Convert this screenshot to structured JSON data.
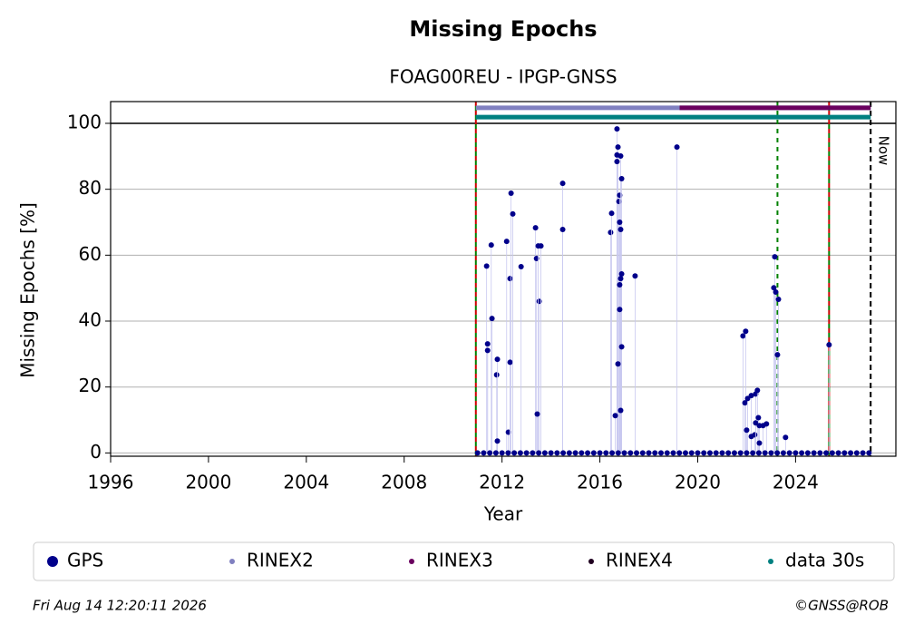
{
  "chart_data": {
    "type": "scatter",
    "title": "Missing Epochs",
    "subtitle": "FOAG00REU - IPGP-GNSS",
    "x_label": "Year",
    "y_label": "Missing Epochs [%]",
    "xlim": [
      1996,
      2028.1
    ],
    "ylim": [
      -1,
      106.6
    ],
    "xticks": [
      1996,
      2000,
      2004,
      2008,
      2012,
      2016,
      2020,
      2024
    ],
    "yticks": [
      0,
      20,
      40,
      60,
      80,
      100
    ],
    "grid": true,
    "hline": 100,
    "series": [
      {
        "name": "GPS",
        "color": "#00008b",
        "marker": "dot",
        "stems": true,
        "x": [
          2011.37,
          2011.41,
          2011.41,
          2011.56,
          2011.59,
          2011.78,
          2011.81,
          2011.81,
          2012.19,
          2012.26,
          2012.33,
          2012.37,
          2012.33,
          2012.44,
          2012.78,
          2013.37,
          2013.41,
          2013.52,
          2013.48,
          2013.59,
          2013.44,
          2014.48,
          2014.48,
          2016.44,
          2016.48,
          2016.7,
          2016.74,
          2016.7,
          2016.7,
          2016.78,
          2016.81,
          2016.85,
          2016.89,
          2016.81,
          2016.85,
          2016.89,
          2016.85,
          2016.81,
          2016.81,
          2016.74,
          2016.89,
          2016.85,
          2016.63,
          2017.44,
          2019.15,
          2021.85,
          2021.96,
          2021.93,
          2022.04,
          2022.19,
          2022.37,
          2022.44,
          2022.0,
          2022.19,
          2022.33,
          2022.37,
          2022.48,
          2022.52,
          2022.52,
          2022.67,
          2022.81,
          2023.15,
          2023.11,
          2023.19,
          2023.3,
          2023.26,
          2023.59,
          2025.37,
          2011,
          2011.25,
          2011.5,
          2011.75,
          2012,
          2012.25,
          2012.5,
          2012.75,
          2013,
          2013.25,
          2013.5,
          2013.75,
          2014,
          2014.25,
          2014.5,
          2014.75,
          2015,
          2015.25,
          2015.5,
          2015.75,
          2016,
          2016.25,
          2016.5,
          2016.75,
          2017,
          2017.25,
          2017.5,
          2017.75,
          2018,
          2018.25,
          2018.5,
          2018.75,
          2019,
          2019.25,
          2019.5,
          2019.75,
          2020,
          2020.25,
          2020.5,
          2020.75,
          2021,
          2021.25,
          2021.5,
          2021.75,
          2022,
          2022.25,
          2022.5,
          2022.75,
          2023,
          2023.25,
          2023.5,
          2023.75,
          2024,
          2024.25,
          2024.5,
          2024.75,
          2025,
          2025.25,
          2025.5,
          2025.75,
          2026,
          2026.25,
          2026.5,
          2026.75,
          2027
        ],
        "values": [
          56.7,
          33.1,
          31.1,
          63.1,
          40.8,
          23.7,
          28.4,
          3.6,
          64.2,
          6.3,
          52.9,
          78.8,
          27.5,
          72.5,
          56.5,
          68.3,
          59.0,
          46.0,
          62.8,
          62.8,
          11.8,
          81.8,
          67.8,
          66.9,
          72.7,
          98.3,
          92.8,
          90.4,
          88.4,
          76.3,
          78.2,
          90.1,
          83.2,
          70.0,
          67.8,
          54.3,
          52.9,
          51.0,
          43.5,
          27.0,
          32.2,
          12.9,
          11.3,
          53.7,
          92.8,
          35.5,
          36.9,
          15.2,
          16.5,
          17.4,
          17.9,
          19.0,
          6.9,
          5.0,
          5.5,
          9.1,
          10.7,
          8.3,
          3.0,
          8.3,
          8.8,
          59.5,
          50.1,
          48.8,
          46.6,
          29.8,
          4.7,
          32.8,
          0,
          0,
          0,
          0,
          0,
          0,
          0,
          0,
          0,
          0,
          0,
          0,
          0,
          0,
          0,
          0,
          0,
          0,
          0,
          0,
          0,
          0,
          0,
          0,
          0,
          0,
          0,
          0,
          0,
          0,
          0,
          0,
          0,
          0,
          0,
          0,
          0,
          0,
          0,
          0,
          0,
          0,
          0,
          0,
          0,
          0,
          0,
          0,
          0,
          0,
          0,
          0,
          0,
          0,
          0,
          0,
          0,
          0,
          0,
          0,
          0,
          0,
          0,
          0,
          0
        ]
      },
      {
        "name": "RINEX2",
        "color": "#8080c0",
        "marker": "line",
        "x": [
          2010.93,
          2027.07
        ],
        "values": [
          104.7,
          104.7
        ]
      },
      {
        "name": "RINEX3",
        "color": "#6a005f",
        "marker": "line",
        "x": [
          2019.26,
          2027.07
        ],
        "values": [
          104.7,
          104.7
        ]
      },
      {
        "name": "RINEX4",
        "color": "#200020",
        "marker": "line",
        "x": [],
        "values": []
      },
      {
        "name": "data 30s",
        "color": "#008080",
        "marker": "line",
        "x": [
          2010.93,
          2027.07
        ],
        "values": [
          101.9,
          101.9
        ]
      }
    ],
    "vlines": [
      {
        "x": 2010.93,
        "colors": [
          "#cc0000",
          "#008000"
        ]
      },
      {
        "x": 2023.26,
        "colors": [
          "#008000"
        ]
      },
      {
        "x": 2025.37,
        "colors": [
          "#cc0000",
          "#008000"
        ]
      }
    ],
    "now": {
      "x": 2027.07,
      "label": "Now"
    },
    "footer_left": "Fri Aug 14 12:20:11 2026",
    "footer_right": "©GNSS@ROB"
  }
}
